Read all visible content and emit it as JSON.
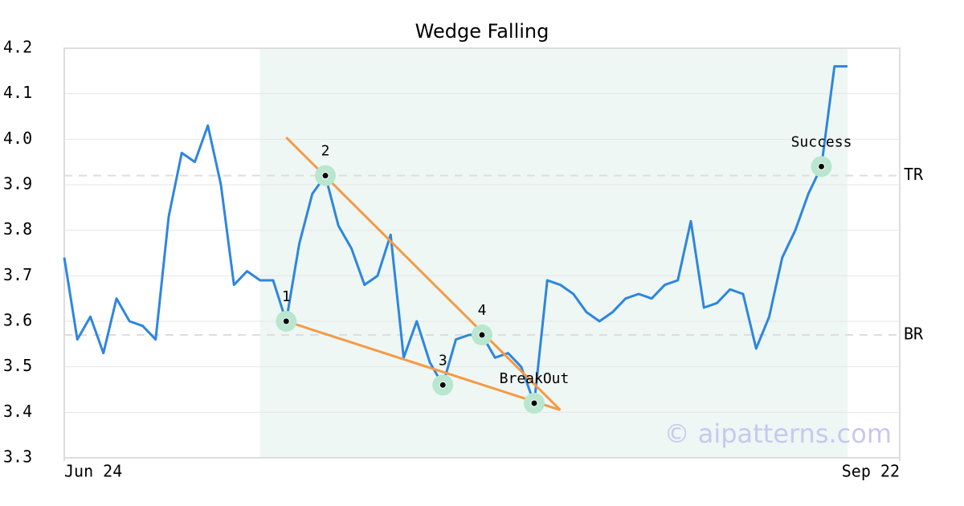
{
  "chart_data": {
    "type": "line",
    "title": "Wedge Falling",
    "x": [
      0,
      1,
      2,
      3,
      4,
      5,
      6,
      7,
      8,
      9,
      10,
      11,
      12,
      13,
      14,
      15,
      16,
      17,
      18,
      19,
      20,
      21,
      22,
      23,
      24,
      25,
      26,
      27,
      28,
      29,
      30,
      31,
      32,
      33,
      34,
      35,
      36,
      37,
      38,
      39,
      40,
      41,
      42,
      43,
      44,
      45,
      46,
      47,
      48,
      49,
      50,
      51,
      52,
      53,
      54,
      55,
      56,
      57,
      58,
      59,
      60
    ],
    "values": [
      3.74,
      3.56,
      3.61,
      3.53,
      3.65,
      3.6,
      3.59,
      3.56,
      3.83,
      3.97,
      3.95,
      4.03,
      3.9,
      3.68,
      3.71,
      3.69,
      3.69,
      3.6,
      3.77,
      3.88,
      3.92,
      3.81,
      3.76,
      3.68,
      3.7,
      3.79,
      3.52,
      3.6,
      3.51,
      3.46,
      3.56,
      3.57,
      3.57,
      3.52,
      3.53,
      3.5,
      3.42,
      3.69,
      3.68,
      3.66,
      3.62,
      3.6,
      3.62,
      3.65,
      3.66,
      3.65,
      3.68,
      3.69,
      3.82,
      3.63,
      3.64,
      3.67,
      3.66,
      3.54,
      3.61,
      3.74,
      3.8,
      3.88,
      3.94,
      4.16,
      4.16
    ],
    "color": "#2e86de",
    "xlim": [
      0,
      64
    ],
    "xticks": [
      {
        "value": 0,
        "label": "Jun 24"
      },
      {
        "value": 64,
        "label": "Sep 22"
      }
    ],
    "ylim": [
      3.3,
      4.2
    ],
    "yticks": [
      3.3,
      3.4,
      3.5,
      3.6,
      3.7,
      3.8,
      3.9,
      {
        "value": 4,
        "label": "4.0"
      },
      4.1,
      4.2
    ],
    "grid": true,
    "highlight_range": [
      15,
      60
    ],
    "levels": [
      {
        "label": "TR",
        "value": 3.92
      },
      {
        "label": "BR",
        "value": 3.57
      }
    ],
    "trendlines": [
      {
        "x": [
          17,
          38
        ],
        "y": [
          4.004,
          3.405
        ],
        "color": "#f59a45"
      },
      {
        "x": [
          17,
          38
        ],
        "y": [
          3.6,
          3.405
        ],
        "color": "#f59a45"
      }
    ],
    "annotations": [
      {
        "label": "1",
        "x": 17,
        "y": 3.6
      },
      {
        "label": "2",
        "x": 20,
        "y": 3.92
      },
      {
        "label": "3",
        "x": 29,
        "y": 3.46
      },
      {
        "label": "4",
        "x": 32,
        "y": 3.57
      },
      {
        "label": "BreakOut",
        "x": 36,
        "y": 3.42
      },
      {
        "label": "Success",
        "x": 58,
        "y": 3.94
      }
    ],
    "watermark": "© aipatterns.com"
  }
}
